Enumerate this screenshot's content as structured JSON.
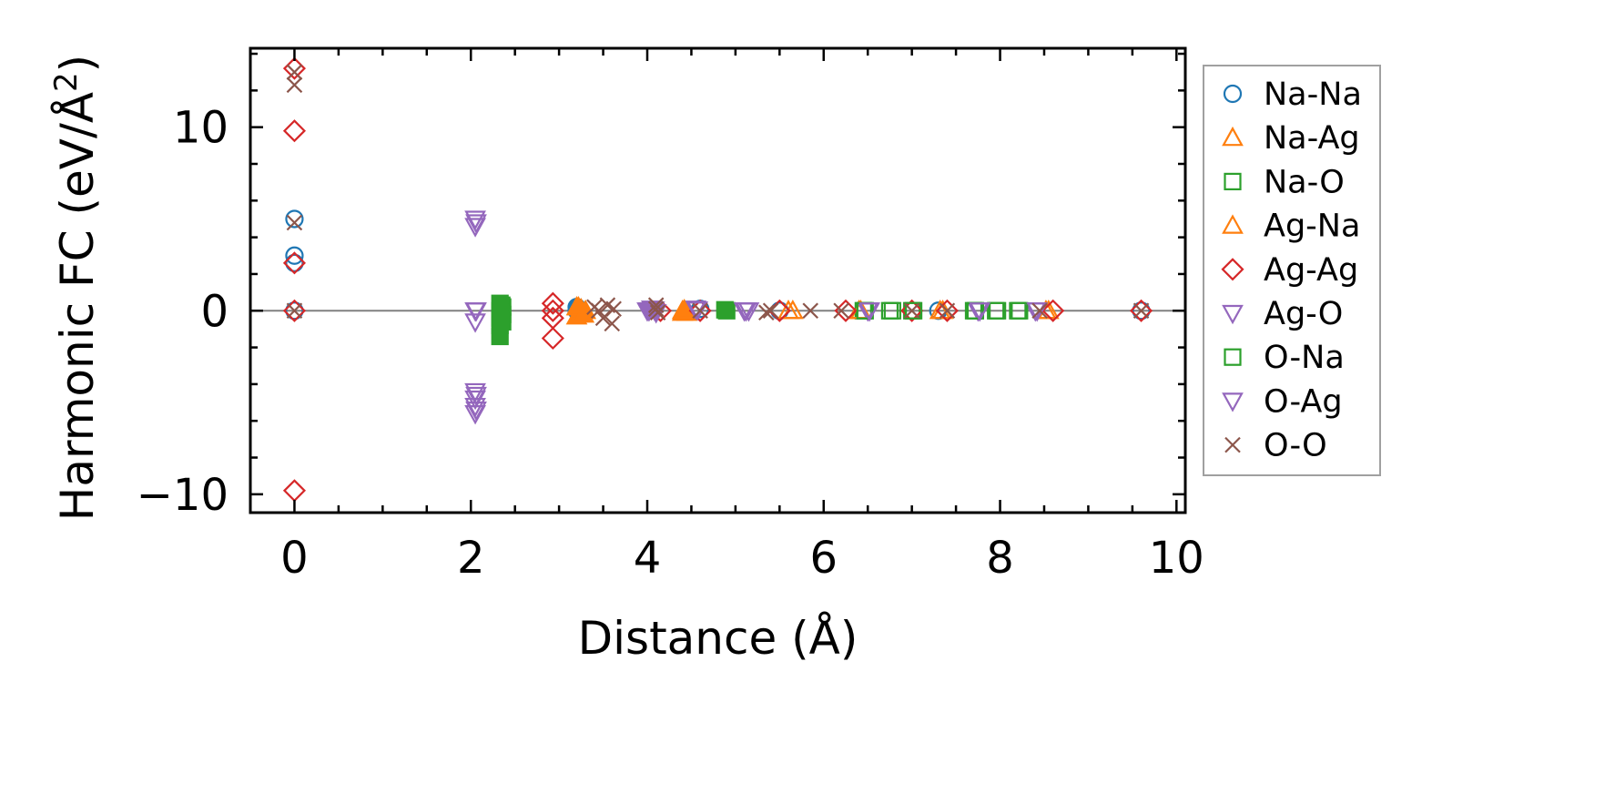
{
  "chart_data": {
    "type": "scatter",
    "xlabel": "Distance (Å)",
    "ylabel_main": "Harmonic FC (eV/Å",
    "ylabel_sup": "2",
    "ylabel_close": ")",
    "xlim": [
      -0.5,
      10.1
    ],
    "ylim": [
      -11,
      14.3
    ],
    "xticks": [
      0,
      2,
      4,
      6,
      8,
      10
    ],
    "xtick_labels": [
      "0",
      "2",
      "4",
      "6",
      "8",
      "10"
    ],
    "yticks": [
      -10,
      0,
      10
    ],
    "ytick_labels": [
      "−10",
      "0",
      "10"
    ],
    "zero_line": true,
    "grid": false,
    "legend_position": "outside-right",
    "series": [
      {
        "name": "Na-Na",
        "marker": "circle",
        "color": "#1f77b4",
        "filled_at": [
          3.2
        ],
        "points": [
          [
            0,
            5
          ],
          [
            0,
            3
          ],
          [
            0,
            2.6
          ],
          [
            0,
            0
          ],
          [
            3.2,
            0.2
          ],
          [
            3.2,
            0
          ],
          [
            4.6,
            0.1
          ],
          [
            5.5,
            0
          ],
          [
            7.3,
            0
          ],
          [
            9.6,
            0
          ]
        ]
      },
      {
        "name": "Na-Ag",
        "marker": "triangle-up",
        "color": "#ff7f0e",
        "filled_at": [
          3.25,
          4.4
        ],
        "points": [
          [
            3.2,
            0.2
          ],
          [
            3.2,
            -0.3
          ],
          [
            3.25,
            0.1
          ],
          [
            3.3,
            0
          ],
          [
            4.4,
            0
          ],
          [
            4.45,
            -0.1
          ],
          [
            5.65,
            0
          ],
          [
            6.4,
            0
          ],
          [
            7.35,
            0
          ],
          [
            8.55,
            0
          ]
        ]
      },
      {
        "name": "Na-O",
        "marker": "square",
        "color": "#2ca02c",
        "filled_at": [
          2.35,
          4.9
        ],
        "points": [
          [
            2.33,
            0.4
          ],
          [
            2.33,
            0
          ],
          [
            2.33,
            -0.4
          ],
          [
            2.33,
            -0.8
          ],
          [
            2.33,
            -1.4
          ],
          [
            2.36,
            0.2
          ],
          [
            2.36,
            -0.2
          ],
          [
            2.36,
            -0.6
          ],
          [
            4.9,
            0
          ],
          [
            6.45,
            0
          ],
          [
            6.75,
            0
          ],
          [
            7.0,
            0
          ],
          [
            7.7,
            0
          ],
          [
            7.95,
            0
          ],
          [
            8.2,
            0
          ]
        ]
      },
      {
        "name": "Ag-Na",
        "marker": "triangle-up",
        "color": "#ff7f0e",
        "filled_at": [
          3.25,
          4.4
        ],
        "points": [
          [
            3.22,
            0.2
          ],
          [
            3.28,
            -0.2
          ],
          [
            4.4,
            -0.1
          ],
          [
            4.42,
            0.05
          ],
          [
            5.6,
            0
          ],
          [
            6.42,
            0
          ],
          [
            7.32,
            0
          ],
          [
            8.52,
            0
          ]
        ]
      },
      {
        "name": "Ag-Ag",
        "marker": "diamond",
        "color": "#d62728",
        "filled_at": [],
        "points": [
          [
            0,
            13.2
          ],
          [
            0,
            9.8
          ],
          [
            0,
            2.6
          ],
          [
            0,
            0
          ],
          [
            0,
            -9.8
          ],
          [
            2.93,
            0.4
          ],
          [
            2.93,
            0
          ],
          [
            2.93,
            -0.4
          ],
          [
            2.93,
            -1.5
          ],
          [
            4.15,
            0
          ],
          [
            4.6,
            0
          ],
          [
            5.5,
            0
          ],
          [
            6.25,
            0
          ],
          [
            7.0,
            0
          ],
          [
            7.4,
            0
          ],
          [
            8.6,
            0
          ],
          [
            9.6,
            0
          ]
        ]
      },
      {
        "name": "Ag-O",
        "marker": "triangle-down",
        "color": "#9467bd",
        "filled_at": [
          4.05
        ],
        "points": [
          [
            2.05,
            5
          ],
          [
            2.05,
            4.6
          ],
          [
            2.05,
            0
          ],
          [
            2.05,
            -0.6
          ],
          [
            2.05,
            -4.4
          ],
          [
            2.05,
            -4.8
          ],
          [
            2.05,
            -5.2
          ],
          [
            2.05,
            -5.6
          ],
          [
            4.0,
            0
          ],
          [
            4.05,
            0.1
          ],
          [
            4.1,
            -0.1
          ],
          [
            4.55,
            0.1
          ],
          [
            5.1,
            0
          ],
          [
            5.15,
            0
          ],
          [
            6.5,
            0
          ],
          [
            7.75,
            0
          ],
          [
            8.4,
            0
          ]
        ]
      },
      {
        "name": "O-Na",
        "marker": "square",
        "color": "#2ca02c",
        "filled_at": [
          2.35,
          4.9
        ],
        "points": [
          [
            2.35,
            0.3
          ],
          [
            2.35,
            -0.1
          ],
          [
            2.35,
            -0.5
          ],
          [
            4.88,
            0.05
          ],
          [
            6.47,
            0
          ],
          [
            6.78,
            0
          ],
          [
            7.02,
            0
          ],
          [
            7.72,
            0
          ],
          [
            7.97,
            0
          ],
          [
            8.22,
            0
          ]
        ]
      },
      {
        "name": "O-Ag",
        "marker": "triangle-down",
        "color": "#9467bd",
        "filled_at": [
          4.05
        ],
        "points": [
          [
            2.06,
            4.8
          ],
          [
            2.06,
            0
          ],
          [
            2.06,
            -4.6
          ],
          [
            2.06,
            -5.4
          ],
          [
            4.02,
            0
          ],
          [
            4.08,
            0.05
          ],
          [
            4.57,
            0.05
          ],
          [
            5.12,
            0
          ],
          [
            6.52,
            0
          ],
          [
            7.77,
            0
          ],
          [
            8.42,
            0
          ]
        ]
      },
      {
        "name": "O-O",
        "marker": "x",
        "color": "#8c564b",
        "filled_at": [],
        "points": [
          [
            0,
            12.3
          ],
          [
            0,
            13
          ],
          [
            0,
            4.8
          ],
          [
            0,
            0
          ],
          [
            3.4,
            0.2
          ],
          [
            3.45,
            0
          ],
          [
            3.5,
            -0.4
          ],
          [
            3.55,
            0.3
          ],
          [
            3.6,
            -0.7
          ],
          [
            3.62,
            0.1
          ],
          [
            4.1,
            0.3
          ],
          [
            4.1,
            0.1
          ],
          [
            4.12,
            -0.1
          ],
          [
            4.6,
            0
          ],
          [
            5.35,
            -0.1
          ],
          [
            5.4,
            0
          ],
          [
            5.85,
            0
          ],
          [
            6.2,
            0
          ],
          [
            7.0,
            0
          ],
          [
            7.4,
            0
          ],
          [
            8.45,
            0
          ],
          [
            9.6,
            0
          ]
        ]
      }
    ]
  }
}
